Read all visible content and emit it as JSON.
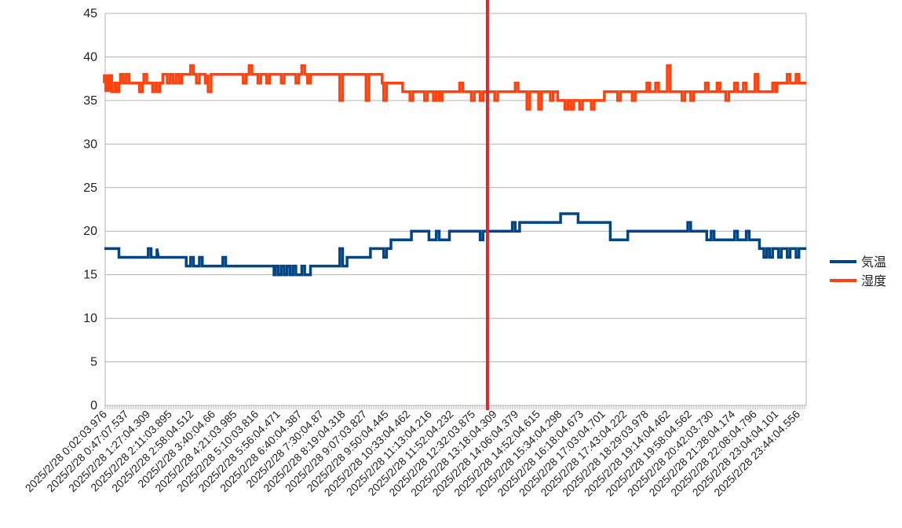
{
  "chart_data": {
    "type": "line",
    "title": "",
    "xlabel": "",
    "ylabel": "",
    "ylim": [
      0,
      45
    ],
    "yticks": [
      0,
      5,
      10,
      15,
      20,
      25,
      30,
      35,
      40,
      45
    ],
    "grid": true,
    "legend_position": "right",
    "x_tick_labels": [
      "2025/2/28 0:02:03.976",
      "2025/2/28 0:47:07.537",
      "2025/2/28 1:27:04.309",
      "2025/2/28 2:11:03.895",
      "2025/2/28 2:58:04.512",
      "2025/2/28 3:40:04.66",
      "2025/2/28 4:21:03.985",
      "2025/2/28 5:10:03.816",
      "2025/2/28 5:56:04.471",
      "2025/2/28 6:40:04.387",
      "2025/2/28 7:30:04.87",
      "2025/2/28 8:19:04.318",
      "2025/2/28 9:07:03.827",
      "2025/2/28 9:50:04.445",
      "2025/2/28 10:33:04.462",
      "2025/2/28 11:13:04.216",
      "2025/2/28 11:52:04.232",
      "2025/2/28 12:32:03.875",
      "2025/2/28 13:18:04.309",
      "2025/2/28 14:06:04.379",
      "2025/2/28 14:52:04.615",
      "2025/2/28 15:34:04.298",
      "2025/2/28 16:18:04.673",
      "2025/2/28 17:03:04.701",
      "2025/2/28 17:43:04.222",
      "2025/2/28 18:29:03.978",
      "2025/2/28 19:14:04.462",
      "2025/2/28 19:58:04.562",
      "2025/2/28 20:42:03.730",
      "2025/2/28 21:28:04.174",
      "2025/2/28 22:08:04.796",
      "2025/2/28 23:04:04.101",
      "2025/2/28 23:44:04.556"
    ],
    "x_range_hours": [
      0.03,
      24.0
    ],
    "vertical_marker_hour": 13.1,
    "vertical_marker_color": "#e0262b",
    "series": [
      {
        "name": "気温",
        "color": "#004586",
        "x_hours": [
          0.0,
          0.5,
          0.5,
          1.8,
          1.8,
          1.85,
          1.85,
          2.8,
          2.8,
          5.8,
          5.8,
          7.05,
          7.05,
          8.3,
          8.3,
          9.1,
          9.1,
          9.8,
          9.8,
          10.5,
          10.5,
          11.1,
          11.1,
          11.8,
          11.8,
          13.1,
          13.1,
          14.2,
          14.2,
          15.6,
          15.6,
          16.2,
          16.2,
          17.3,
          17.3,
          17.9,
          17.9,
          20.6,
          20.6,
          22.4,
          22.4,
          24.0
        ],
        "y_values": [
          18,
          18,
          17,
          17,
          18,
          17,
          17,
          17,
          16,
          16,
          15,
          15,
          16,
          16,
          17,
          17,
          18,
          18,
          19,
          19,
          20,
          20,
          19,
          19,
          20,
          20,
          20,
          20,
          21,
          21,
          22,
          22,
          21,
          21,
          19,
          19,
          20,
          20,
          19,
          19,
          18,
          18
        ],
        "spikes": [
          [
            1.55,
            18
          ],
          [
            2.3,
            17
          ],
          [
            2.5,
            17
          ],
          [
            2.7,
            17
          ],
          [
            3.0,
            17
          ],
          [
            3.3,
            17
          ],
          [
            4.1,
            17
          ],
          [
            5.9,
            16
          ],
          [
            6.1,
            16
          ],
          [
            6.3,
            16
          ],
          [
            6.5,
            16
          ],
          [
            6.8,
            16
          ],
          [
            7.6,
            16
          ],
          [
            8.1,
            18
          ],
          [
            9.6,
            17
          ],
          [
            10.2,
            19
          ],
          [
            10.4,
            19
          ],
          [
            10.6,
            20
          ],
          [
            10.9,
            20
          ],
          [
            11.4,
            20
          ],
          [
            12.9,
            19
          ],
          [
            14.0,
            21
          ],
          [
            20.0,
            21
          ],
          [
            20.3,
            20
          ],
          [
            20.8,
            20
          ],
          [
            21.3,
            19
          ],
          [
            21.6,
            20
          ],
          [
            22.0,
            20
          ],
          [
            22.6,
            17
          ],
          [
            22.8,
            17
          ],
          [
            23.1,
            17
          ],
          [
            23.4,
            17
          ],
          [
            23.7,
            17
          ]
        ]
      },
      {
        "name": "湿度",
        "color": "#ff420e",
        "x_hours": [
          0.0,
          0.2,
          0.2,
          0.9,
          0.9,
          2.0,
          2.0,
          4.3,
          4.3,
          8.2,
          8.2,
          9.5,
          9.5,
          10.2,
          10.2,
          13.1,
          13.1,
          14.8,
          14.8,
          15.5,
          15.5,
          17.1,
          17.1,
          23.0,
          23.0,
          24.0
        ],
        "y_values": [
          37,
          37,
          37,
          37,
          37,
          37,
          38,
          38,
          38,
          38,
          38,
          38,
          37,
          37,
          36,
          36,
          36,
          36,
          36,
          36,
          35,
          35,
          36,
          36,
          37,
          37
        ],
        "spikes": [
          [
            0.05,
            38
          ],
          [
            0.1,
            36
          ],
          [
            0.15,
            36
          ],
          [
            0.2,
            38
          ],
          [
            0.3,
            36
          ],
          [
            0.45,
            36
          ],
          [
            0.6,
            38
          ],
          [
            0.8,
            38
          ],
          [
            1.25,
            36
          ],
          [
            1.4,
            38
          ],
          [
            1.7,
            36
          ],
          [
            1.85,
            36
          ],
          [
            2.2,
            37
          ],
          [
            2.4,
            37
          ],
          [
            2.6,
            37
          ],
          [
            3.0,
            39
          ],
          [
            3.2,
            37
          ],
          [
            3.5,
            37
          ],
          [
            3.6,
            36
          ],
          [
            4.8,
            37
          ],
          [
            5.0,
            39
          ],
          [
            5.3,
            37
          ],
          [
            5.6,
            37
          ],
          [
            6.1,
            37
          ],
          [
            6.6,
            37
          ],
          [
            6.8,
            39
          ],
          [
            7.0,
            37
          ],
          [
            7.6,
            38
          ],
          [
            8.1,
            35
          ],
          [
            9.0,
            35
          ],
          [
            9.6,
            35
          ],
          [
            10.0,
            37
          ],
          [
            10.5,
            35
          ],
          [
            11.0,
            35
          ],
          [
            11.3,
            35
          ],
          [
            11.5,
            35
          ],
          [
            12.2,
            37
          ],
          [
            12.6,
            35
          ],
          [
            12.9,
            35
          ],
          [
            13.4,
            35
          ],
          [
            13.7,
            36
          ],
          [
            14.1,
            37
          ],
          [
            14.5,
            34
          ],
          [
            14.9,
            34
          ],
          [
            15.3,
            35
          ],
          [
            15.8,
            34
          ],
          [
            16.0,
            34
          ],
          [
            16.3,
            34
          ],
          [
            16.7,
            34
          ],
          [
            17.6,
            35
          ],
          [
            18.1,
            35
          ],
          [
            18.6,
            37
          ],
          [
            18.9,
            37
          ],
          [
            19.3,
            39
          ],
          [
            19.8,
            35
          ],
          [
            20.1,
            35
          ],
          [
            20.6,
            37
          ],
          [
            21.0,
            37
          ],
          [
            21.3,
            35
          ],
          [
            21.6,
            37
          ],
          [
            21.9,
            37
          ],
          [
            22.3,
            38
          ],
          [
            22.9,
            37
          ],
          [
            23.4,
            38
          ],
          [
            23.7,
            38
          ]
        ]
      }
    ]
  }
}
